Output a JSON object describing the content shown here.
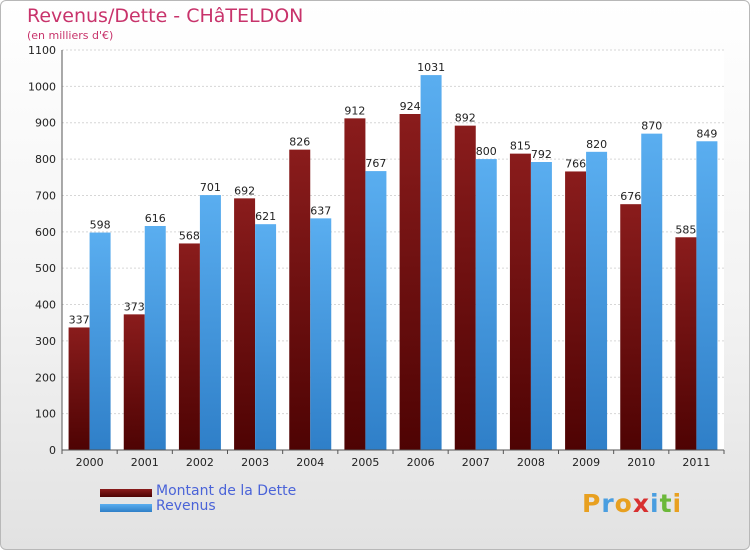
{
  "header": {
    "title": "Revenus/Dette - CHâTELDON",
    "subtitle": "(en milliers d'€)"
  },
  "legend": {
    "items": [
      {
        "label": "Montant de la Dette"
      },
      {
        "label": "Revenus"
      }
    ]
  },
  "logo": {
    "letters": [
      "P",
      "r",
      "o",
      "x",
      "i",
      "t",
      "i"
    ],
    "colors": [
      "#e8a020",
      "#4a9ee0",
      "#e8a020",
      "#d83030",
      "#4a9ee0",
      "#6cb83a",
      "#e8a020"
    ]
  },
  "colors": {
    "dette": "#7a1414",
    "revenus": "#4aa0e6",
    "axis_text": "#222222"
  },
  "chart_data": {
    "type": "bar",
    "title": "Revenus/Dette - CHâTELDON",
    "subtitle": "(en milliers d'€)",
    "categories": [
      "2000",
      "2001",
      "2002",
      "2003",
      "2004",
      "2005",
      "2006",
      "2007",
      "2008",
      "2009",
      "2010",
      "2011"
    ],
    "series": [
      {
        "name": "Montant de la Dette",
        "values": [
          337,
          373,
          568,
          692,
          826,
          912,
          924,
          892,
          815,
          766,
          676,
          585
        ]
      },
      {
        "name": "Revenus",
        "values": [
          598,
          616,
          701,
          621,
          637,
          767,
          1031,
          800,
          792,
          820,
          870,
          849
        ]
      }
    ],
    "yticks": [
      "0",
      "100",
      "200",
      "300",
      "400",
      "500",
      "600",
      "700",
      "800",
      "900",
      "1000",
      "1100"
    ],
    "ylim": [
      0,
      1100
    ],
    "grid": true,
    "legend_position": "bottom-left"
  }
}
